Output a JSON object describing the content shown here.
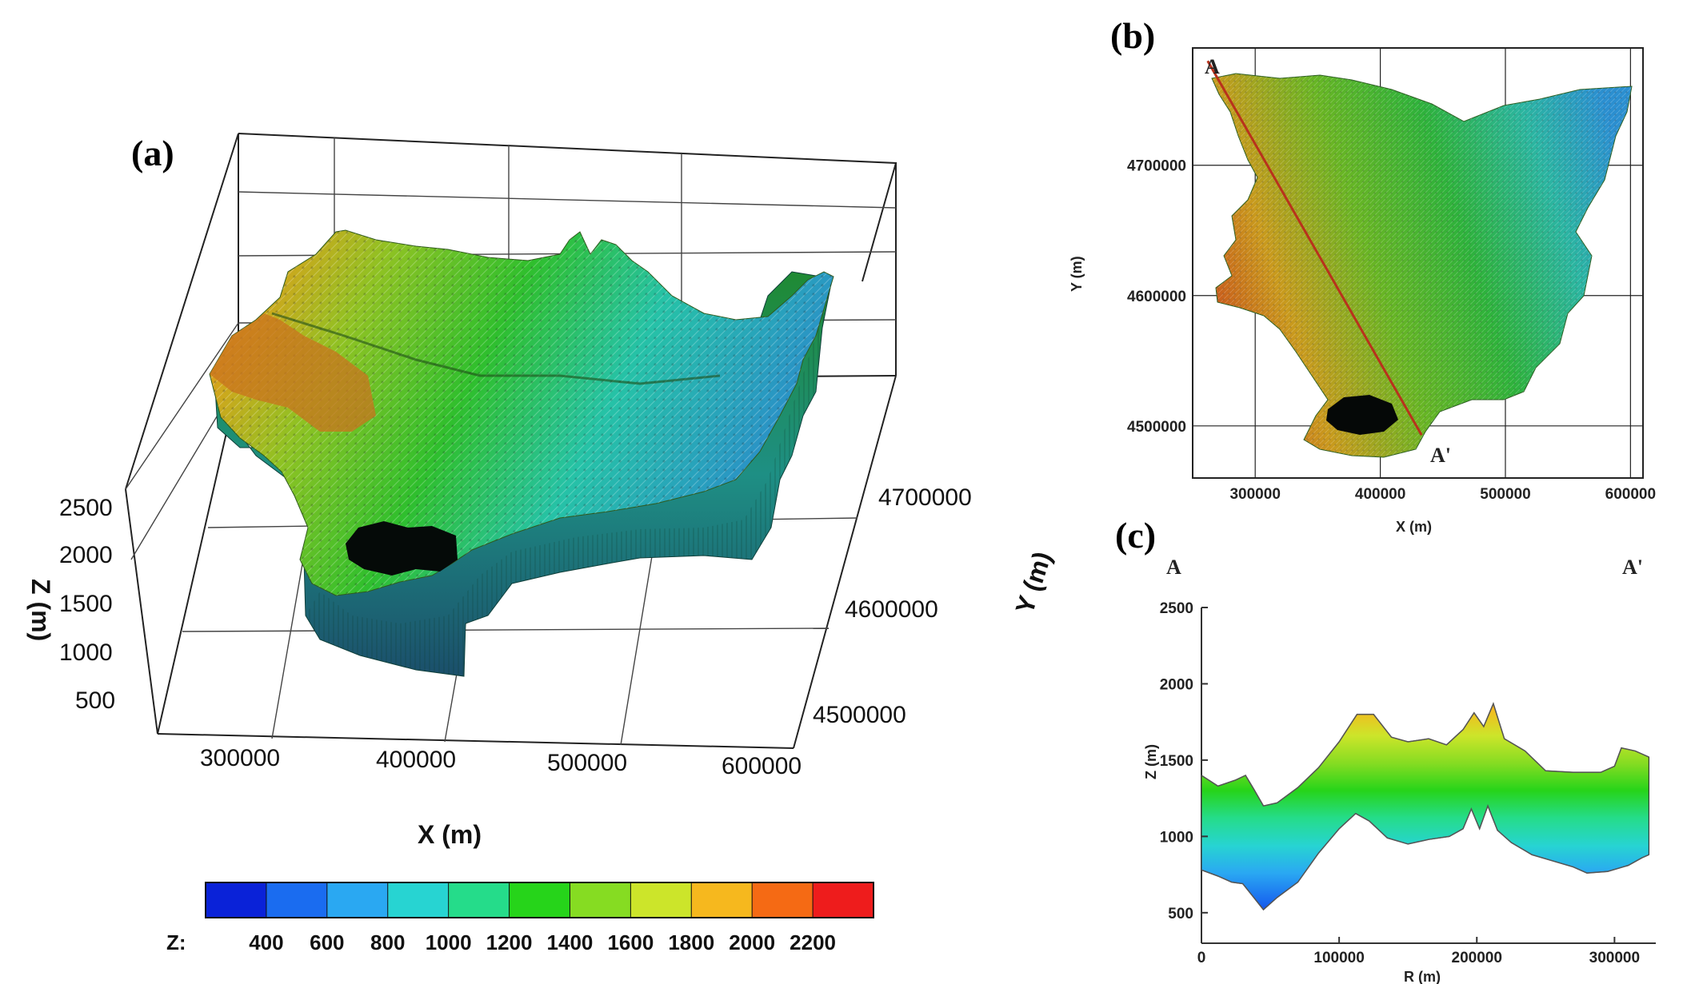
{
  "chart_data": [
    {
      "panel": "(a)",
      "type": "surface3d",
      "xlabel": "X (m)",
      "ylabel": "Y (m)",
      "zlabel": "Z (m)",
      "x_ticks": [
        "300000",
        "400000",
        "500000",
        "600000"
      ],
      "y_ticks": [
        "4500000",
        "4600000",
        "4700000"
      ],
      "z_ticks": [
        "500",
        "1000",
        "1500",
        "2000",
        "2500"
      ],
      "xlim": [
        250000,
        610000
      ],
      "ylim": [
        4460000,
        4790000
      ],
      "zlim": [
        300,
        2600
      ],
      "grid": true
    },
    {
      "panel": "(b)",
      "type": "map",
      "xlabel": "X (m)",
      "ylabel": "Y (m)",
      "x_ticks": [
        "300000",
        "400000",
        "500000",
        "600000"
      ],
      "y_ticks": [
        "4700000",
        "4600000",
        "4500000"
      ],
      "xlim": [
        250000,
        610000
      ],
      "ylim": [
        4460000,
        4790000
      ],
      "grid": true,
      "section_line": {
        "start_label": "A",
        "end_label": "A'",
        "start": [
          262000,
          4780000
        ],
        "end": [
          433000,
          4493000
        ]
      }
    },
    {
      "panel": "(c)",
      "type": "area",
      "xlabel": "R (m)",
      "ylabel": "Z (m)",
      "start_label": "A",
      "end_label": "A'",
      "x_ticks": [
        "0",
        "100000",
        "200000",
        "300000"
      ],
      "y_ticks": [
        "500",
        "1000",
        "1500",
        "2000",
        "2500"
      ],
      "xlim": [
        0,
        330000
      ],
      "ylim": [
        300,
        2500
      ],
      "top_profile": [
        [
          0,
          1400
        ],
        [
          12000,
          1330
        ],
        [
          25000,
          1370
        ],
        [
          32000,
          1400
        ],
        [
          38000,
          1310
        ],
        [
          45000,
          1200
        ],
        [
          55000,
          1220
        ],
        [
          70000,
          1320
        ],
        [
          85000,
          1450
        ],
        [
          100000,
          1620
        ],
        [
          113000,
          1800
        ],
        [
          125000,
          1800
        ],
        [
          138000,
          1650
        ],
        [
          150000,
          1620
        ],
        [
          165000,
          1640
        ],
        [
          178000,
          1600
        ],
        [
          190000,
          1700
        ],
        [
          198000,
          1810
        ],
        [
          205000,
          1720
        ],
        [
          212000,
          1870
        ],
        [
          220000,
          1640
        ],
        [
          235000,
          1560
        ],
        [
          250000,
          1430
        ],
        [
          270000,
          1420
        ],
        [
          290000,
          1420
        ],
        [
          300000,
          1460
        ],
        [
          305000,
          1580
        ],
        [
          315000,
          1560
        ],
        [
          325000,
          1520
        ]
      ],
      "bottom_profile": [
        [
          0,
          780
        ],
        [
          12000,
          740
        ],
        [
          22000,
          700
        ],
        [
          30000,
          690
        ],
        [
          38000,
          600
        ],
        [
          45000,
          520
        ],
        [
          55000,
          600
        ],
        [
          70000,
          700
        ],
        [
          85000,
          890
        ],
        [
          100000,
          1050
        ],
        [
          112000,
          1150
        ],
        [
          122000,
          1100
        ],
        [
          135000,
          990
        ],
        [
          150000,
          950
        ],
        [
          165000,
          980
        ],
        [
          180000,
          1000
        ],
        [
          190000,
          1050
        ],
        [
          196000,
          1180
        ],
        [
          202000,
          1050
        ],
        [
          208000,
          1200
        ],
        [
          215000,
          1040
        ],
        [
          225000,
          960
        ],
        [
          240000,
          880
        ],
        [
          255000,
          840
        ],
        [
          270000,
          800
        ],
        [
          280000,
          760
        ],
        [
          295000,
          770
        ],
        [
          310000,
          810
        ],
        [
          320000,
          860
        ],
        [
          325000,
          880
        ]
      ]
    }
  ],
  "colorbar": {
    "label": "Z:",
    "ticks": [
      "400",
      "600",
      "800",
      "1000",
      "1200",
      "1400",
      "1600",
      "1800",
      "2000",
      "2200"
    ],
    "colors": [
      "#0a22d8",
      "#1a6cf0",
      "#2aa8f2",
      "#27d4d2",
      "#25dc8a",
      "#26d41a",
      "#86dc22",
      "#cce52a",
      "#f6b81e",
      "#f56a14",
      "#ee1c1c"
    ]
  }
}
